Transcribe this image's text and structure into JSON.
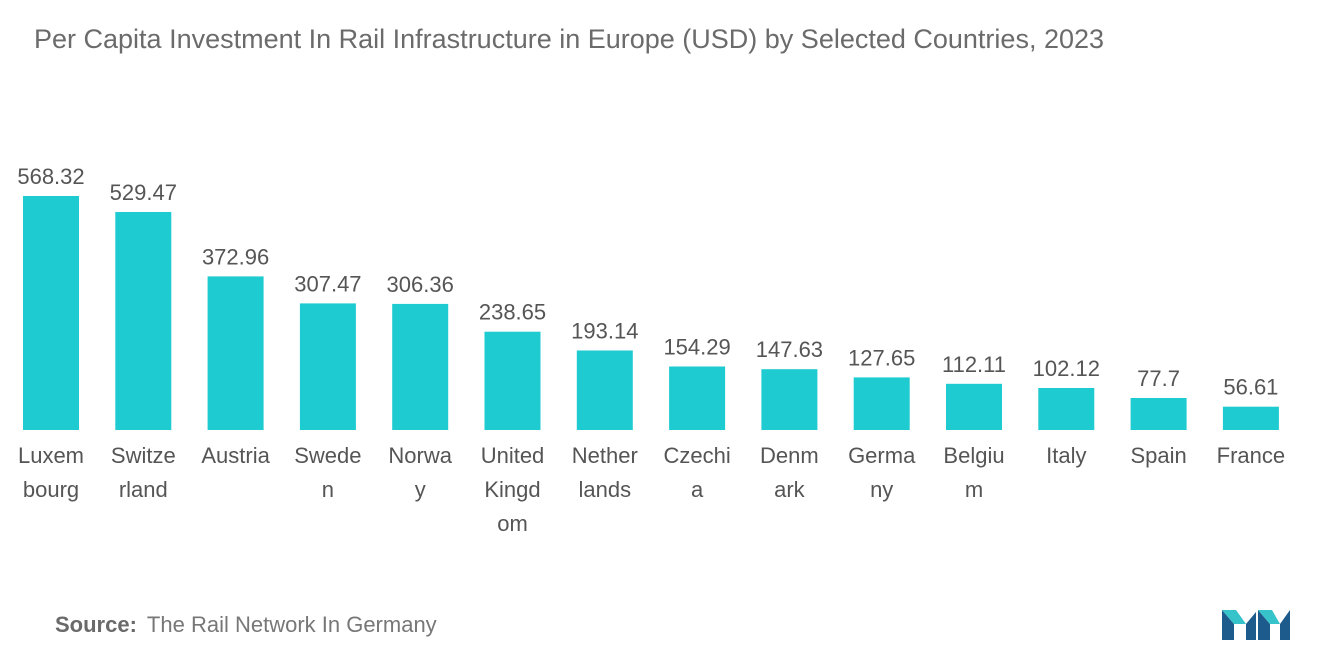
{
  "colors": {
    "bar": "#1ecbd0",
    "text": "#555555",
    "title": "#6b6b6b",
    "logo_dark": "#1d5b8c",
    "logo_light": "#36c3c9"
  },
  "chart_data": {
    "type": "bar",
    "title": "Per Capita Investment In Rail Infrastructure in Europe (USD) by Selected Countries, 2023",
    "categories": [
      "Luxembourg",
      "Switzerland",
      "Austria",
      "Sweden",
      "Norway",
      "United Kingdom",
      "Netherlands",
      "Czechia",
      "Denmark",
      "Germany",
      "Belgium",
      "Italy",
      "Spain",
      "France"
    ],
    "category_label_lines": [
      [
        "Luxem",
        "bourg"
      ],
      [
        "Switze",
        "rland"
      ],
      [
        "Austria"
      ],
      [
        "Swede",
        "n"
      ],
      [
        "Norwa",
        "y"
      ],
      [
        "United",
        "Kingd",
        "om"
      ],
      [
        "Nether",
        "lands"
      ],
      [
        "Czechi",
        "a"
      ],
      [
        "Denm",
        "ark"
      ],
      [
        "Germa",
        "ny"
      ],
      [
        "Belgiu",
        "m"
      ],
      [
        "Italy"
      ],
      [
        "Spain"
      ],
      [
        "France"
      ]
    ],
    "values": [
      568.32,
      529.47,
      372.96,
      307.47,
      306.36,
      238.65,
      193.14,
      154.29,
      147.63,
      127.65,
      112.11,
      102.12,
      77.7,
      56.61
    ],
    "value_labels": [
      "568.32",
      "529.47",
      "372.96",
      "307.47",
      "306.36",
      "238.65",
      "193.14",
      "154.29",
      "147.63",
      "127.65",
      "112.11",
      "102.12",
      "77.7",
      "56.61"
    ],
    "xlabel": "",
    "ylabel": "",
    "ylim": [
      0,
      568.32
    ],
    "grid": false,
    "legend": "none"
  },
  "source": {
    "label": "Source:",
    "text": "The Rail Network In Germany"
  },
  "logo": {
    "name": "mordor-intelligence-logo-icon"
  }
}
